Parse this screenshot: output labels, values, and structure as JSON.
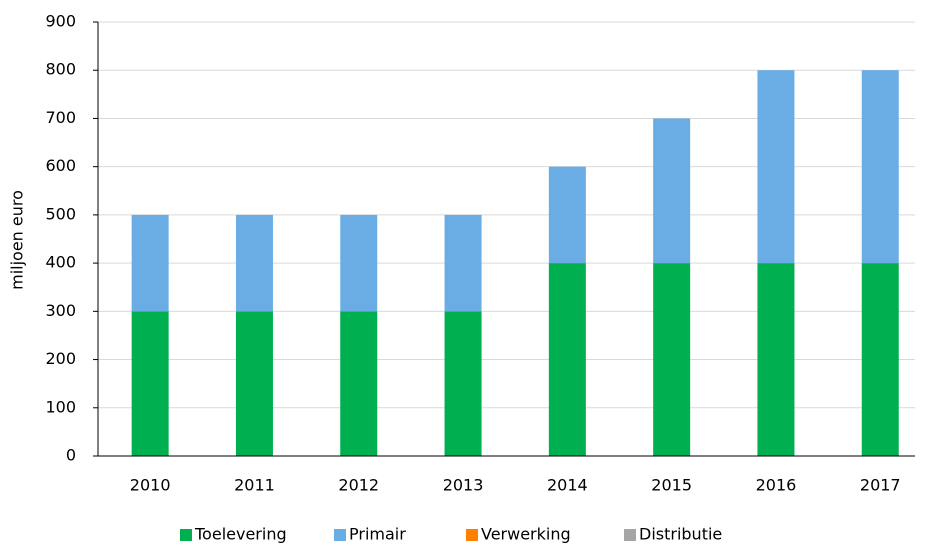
{
  "chart_data": {
    "type": "stacked_bar",
    "ylabel": "miljoen euro",
    "categories": [
      "2010",
      "2011",
      "2012",
      "2013",
      "2014",
      "2015",
      "2016",
      "2017"
    ],
    "series": [
      {
        "name": "Toelevering",
        "color": "#00b050",
        "values": [
          300,
          300,
          300,
          300,
          400,
          400,
          400,
          400
        ]
      },
      {
        "name": "Primair",
        "color": "#6aade4",
        "values": [
          200,
          200,
          200,
          200,
          200,
          300,
          400,
          400
        ]
      },
      {
        "name": "Verwerking",
        "color": "#ff7f00",
        "values": [
          0,
          0,
          0,
          0,
          0,
          0,
          0,
          0
        ]
      },
      {
        "name": "Distributie",
        "color": "#a6a6a6",
        "values": [
          0,
          0,
          0,
          0,
          0,
          0,
          0,
          0
        ]
      }
    ],
    "ylim": [
      0,
      900
    ],
    "yticks": [
      0,
      100,
      200,
      300,
      400,
      500,
      600,
      700,
      800,
      900
    ],
    "grid": true,
    "legend": "bottom"
  }
}
